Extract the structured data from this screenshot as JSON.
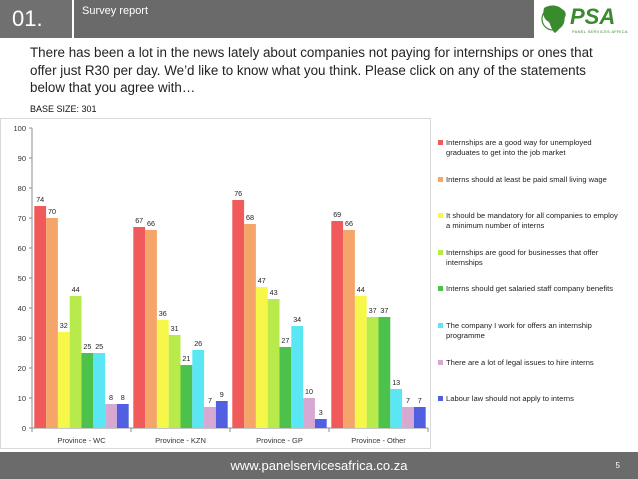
{
  "header": {
    "slide_number": "01.",
    "title": "Survey report",
    "logo_text": "PSA",
    "logo_subtext": "PANEL SERVICES AFRICA"
  },
  "intro": {
    "text": "There has been a lot in the news lately about companies not paying for internships or ones that offer just R30 per day. We’d like to know what you think. Please click on any of the statements below that you agree with…"
  },
  "base_size": "BASE SIZE: 301",
  "footer": {
    "url": "www.panelservicesafrica.co.za",
    "page": "5"
  },
  "colors": {
    "header_bg": "#6a6a6a",
    "footer_bg": "#6b6b6b",
    "logo_green": "#3a8a2e",
    "logo_red": "#c0392b"
  },
  "chart_data": {
    "type": "bar",
    "categories": [
      "Province  - WC",
      "Province  - KZN",
      "Province  - GP",
      "Province  - Other"
    ],
    "ylim": [
      0,
      100
    ],
    "yticks": [
      0,
      10,
      20,
      30,
      40,
      50,
      60,
      70,
      80,
      90,
      100
    ],
    "grid": false,
    "legend_position": "right",
    "series": [
      {
        "name": "Internships are a good way for unemployed graduates to get into the job market",
        "color": "#f05a5a",
        "values": [
          74,
          67,
          76,
          69
        ]
      },
      {
        "name": "Interns should at least be paid small living wage",
        "color": "#f5a56a",
        "values": [
          70,
          66,
          68,
          66
        ]
      },
      {
        "name": "It should be mandatory for all companies to employ a minimum number of interns",
        "color": "#f7f74a",
        "values": [
          32,
          36,
          47,
          44
        ]
      },
      {
        "name": "Internships are good for businesses that offer internships",
        "color": "#b7ea4a",
        "values": [
          44,
          31,
          43,
          37
        ]
      },
      {
        "name": "Interns should get salaried staff company benefits",
        "color": "#4cc24c",
        "values": [
          25,
          21,
          27,
          37
        ]
      },
      {
        "name": "The company I work for offers an internship programme",
        "color": "#5ae6f2",
        "values": [
          25,
          26,
          34,
          13
        ]
      },
      {
        "name": "There are a lot of legal issues to hire interns",
        "color": "#d7a8d2",
        "values": [
          8,
          7,
          10,
          7
        ]
      },
      {
        "name": "Labour law should not apply to interns",
        "color": "#5060e0",
        "values": [
          8,
          9,
          3,
          7
        ]
      }
    ]
  }
}
